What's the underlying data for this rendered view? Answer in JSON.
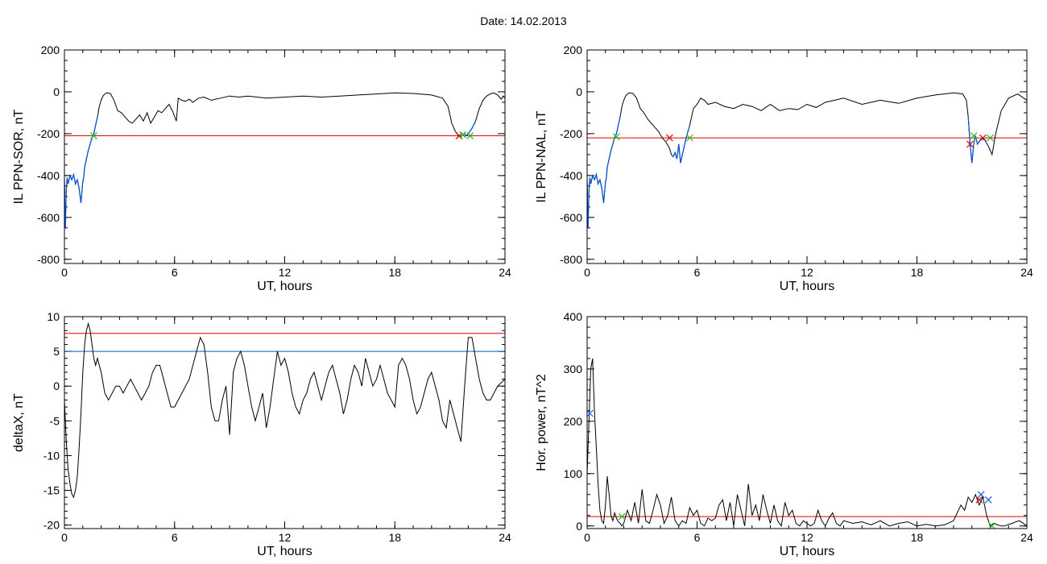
{
  "figure": {
    "title": "Date:  14.02.2013"
  },
  "colors": {
    "axis": "#000000",
    "trace": "#000000",
    "highlight": "#0050d0",
    "threshold_red": "#e00000",
    "threshold_blue": "#0060c0",
    "marker_green": "#20c020",
    "marker_red": "#d00000",
    "marker_blue": "#1060e0"
  },
  "chart_data": [
    {
      "type": "line",
      "id": "il-sor",
      "xlabel": "UT, hours",
      "ylabel": "IL PPN-SOR, nT",
      "xlim": [
        0,
        24
      ],
      "ylim": [
        -820,
        200
      ],
      "xticks": [
        0,
        6,
        12,
        18,
        24
      ],
      "yticks": [
        200,
        0,
        -200,
        -400,
        -600,
        -800
      ],
      "x_minor_step": 1,
      "y_minor_step": 50,
      "thresholds": [
        {
          "y": -210,
          "color": "red"
        }
      ],
      "series": [
        {
          "x": [
            0,
            0.05,
            0.1,
            0.15,
            0.2,
            0.3,
            0.4,
            0.5,
            0.6,
            0.7,
            0.8,
            0.9,
            1.0,
            1.05,
            1.1,
            1.2,
            1.3,
            1.4,
            1.5,
            1.6,
            1.7,
            1.8,
            1.9,
            2.0,
            2.1,
            2.2,
            2.3,
            2.5,
            2.7,
            2.9,
            3.1,
            3.3,
            3.5,
            3.7,
            3.9,
            4.1,
            4.3,
            4.5,
            4.7,
            4.9,
            5.1,
            5.3,
            5.5,
            5.7,
            5.9,
            6.1,
            6.2,
            6.4,
            6.6,
            6.8,
            7.0,
            7.3,
            7.6,
            8.0,
            8.5,
            9.0,
            9.5,
            10.0,
            11.0,
            12.0,
            13.0,
            14.0,
            15.0,
            16.0,
            17.0,
            18.0,
            19.0,
            20.0,
            20.6,
            20.9,
            21.1,
            21.3,
            21.5,
            21.6,
            21.7,
            21.8,
            21.9,
            22.0,
            22.2,
            22.4,
            22.6,
            22.8,
            23.0,
            23.2,
            23.4,
            23.6,
            23.8,
            23.9,
            24.0
          ],
          "y": [
            -420,
            -650,
            -470,
            -410,
            -440,
            -400,
            -420,
            -395,
            -440,
            -420,
            -460,
            -530,
            -430,
            -410,
            -360,
            -320,
            -280,
            -250,
            -220,
            -200,
            -160,
            -120,
            -70,
            -40,
            -20,
            -10,
            -5,
            -8,
            -40,
            -90,
            -100,
            -120,
            -140,
            -150,
            -130,
            -110,
            -140,
            -100,
            -150,
            -120,
            -90,
            -100,
            -80,
            -60,
            -95,
            -140,
            -30,
            -40,
            -45,
            -35,
            -50,
            -30,
            -25,
            -40,
            -30,
            -20,
            -25,
            -20,
            -30,
            -25,
            -20,
            -25,
            -20,
            -15,
            -10,
            -5,
            -8,
            -15,
            -30,
            -70,
            -150,
            -190,
            -210,
            -215,
            -205,
            -200,
            -210,
            -200,
            -175,
            -140,
            -80,
            -40,
            -20,
            -10,
            -5,
            -15,
            -35,
            -20,
            -30
          ],
          "highlight_x": [
            [
              0,
              1.8
            ],
            [
              21.3,
              22.4
            ]
          ],
          "markers": [
            {
              "x": 1.6,
              "y": -210,
              "color": "green"
            },
            {
              "x": 21.5,
              "y": -210,
              "color": "red"
            },
            {
              "x": 21.7,
              "y": -205,
              "color": "green"
            },
            {
              "x": 22.1,
              "y": -210,
              "color": "green"
            }
          ]
        }
      ]
    },
    {
      "type": "line",
      "id": "il-nal",
      "xlabel": "UT, hours",
      "ylabel": "IL PPN-NAL, nT",
      "xlim": [
        0,
        24
      ],
      "ylim": [
        -820,
        200
      ],
      "xticks": [
        0,
        6,
        12,
        18,
        24
      ],
      "yticks": [
        200,
        0,
        -200,
        -400,
        -600,
        -800
      ],
      "x_minor_step": 1,
      "y_minor_step": 50,
      "thresholds": [
        {
          "y": -220,
          "color": "red"
        }
      ],
      "series": [
        {
          "x": [
            0,
            0.05,
            0.1,
            0.15,
            0.2,
            0.3,
            0.4,
            0.5,
            0.6,
            0.7,
            0.8,
            0.9,
            1.0,
            1.05,
            1.1,
            1.2,
            1.3,
            1.4,
            1.5,
            1.6,
            1.7,
            1.8,
            1.9,
            2.0,
            2.1,
            2.2,
            2.3,
            2.5,
            2.7,
            2.9,
            3.1,
            3.3,
            3.5,
            3.7,
            3.9,
            4.1,
            4.3,
            4.5,
            4.6,
            4.7,
            4.8,
            4.9,
            5.0,
            5.1,
            5.2,
            5.3,
            5.4,
            5.6,
            5.8,
            6.0,
            6.2,
            6.4,
            6.6,
            7.0,
            7.5,
            8.0,
            8.5,
            9.0,
            9.5,
            10.0,
            10.5,
            11.0,
            11.5,
            12.0,
            12.5,
            13.0,
            14.0,
            15.0,
            16.0,
            17.0,
            18.0,
            19.0,
            20.0,
            20.5,
            20.7,
            20.8,
            20.9,
            21.0,
            21.1,
            21.2,
            21.3,
            21.5,
            21.7,
            21.9,
            22.1,
            22.3,
            22.6,
            23.0,
            23.5,
            24.0
          ],
          "y": [
            -420,
            -650,
            -470,
            -410,
            -440,
            -400,
            -420,
            -395,
            -440,
            -420,
            -460,
            -530,
            -430,
            -410,
            -360,
            -320,
            -280,
            -250,
            -220,
            -200,
            -160,
            -120,
            -70,
            -40,
            -20,
            -10,
            -5,
            -8,
            -30,
            -80,
            -100,
            -130,
            -150,
            -170,
            -190,
            -220,
            -240,
            -270,
            -300,
            -310,
            -290,
            -320,
            -250,
            -340,
            -300,
            -260,
            -220,
            -160,
            -80,
            -60,
            -30,
            -40,
            -60,
            -50,
            -70,
            -80,
            -60,
            -70,
            -90,
            -60,
            -90,
            -80,
            -85,
            -60,
            -75,
            -50,
            -30,
            -60,
            -40,
            -55,
            -30,
            -15,
            -5,
            -10,
            -40,
            -120,
            -250,
            -340,
            -250,
            -210,
            -250,
            -225,
            -230,
            -260,
            -300,
            -200,
            -90,
            -30,
            -10,
            -40
          ],
          "highlight_x": [
            [
              0,
              1.8
            ],
            [
              4.6,
              5.6
            ],
            [
              20.8,
              22.0
            ]
          ],
          "markers": [
            {
              "x": 1.6,
              "y": -215,
              "color": "green"
            },
            {
              "x": 4.5,
              "y": -220,
              "color": "red"
            },
            {
              "x": 5.6,
              "y": -220,
              "color": "green"
            },
            {
              "x": 20.9,
              "y": -250,
              "color": "red"
            },
            {
              "x": 21.1,
              "y": -210,
              "color": "green"
            },
            {
              "x": 21.6,
              "y": -220,
              "color": "red"
            },
            {
              "x": 22.0,
              "y": -220,
              "color": "green"
            }
          ]
        }
      ]
    },
    {
      "type": "line",
      "id": "deltax",
      "xlabel": "UT, hours",
      "ylabel": "deltaX, nT",
      "xlim": [
        0,
        24
      ],
      "ylim": [
        -20.5,
        10
      ],
      "xticks": [
        0,
        6,
        12,
        18,
        24
      ],
      "yticks": [
        10,
        5,
        0,
        -5,
        -10,
        -15,
        -20
      ],
      "x_minor_step": 1,
      "y_minor_step": 1,
      "thresholds": [
        {
          "y": 7.6,
          "color": "red"
        },
        {
          "y": 5,
          "color": "blue"
        }
      ],
      "series": [
        {
          "x": [
            0,
            0.1,
            0.2,
            0.3,
            0.4,
            0.5,
            0.6,
            0.7,
            0.8,
            0.9,
            1.0,
            1.1,
            1.2,
            1.3,
            1.4,
            1.5,
            1.6,
            1.7,
            1.8,
            2.0,
            2.2,
            2.4,
            2.6,
            2.8,
            3.0,
            3.2,
            3.4,
            3.6,
            3.8,
            4.0,
            4.2,
            4.4,
            4.6,
            4.8,
            5.0,
            5.2,
            5.4,
            5.6,
            5.8,
            6.0,
            6.2,
            6.4,
            6.6,
            6.8,
            7.0,
            7.2,
            7.4,
            7.6,
            7.8,
            8.0,
            8.2,
            8.4,
            8.6,
            8.8,
            9.0,
            9.2,
            9.4,
            9.6,
            9.8,
            10.0,
            10.2,
            10.4,
            10.6,
            10.8,
            11.0,
            11.2,
            11.4,
            11.6,
            11.8,
            12.0,
            12.2,
            12.4,
            12.6,
            12.8,
            13.0,
            13.2,
            13.4,
            13.6,
            13.8,
            14.0,
            14.2,
            14.4,
            14.6,
            14.8,
            15.0,
            15.2,
            15.4,
            15.6,
            15.8,
            16.0,
            16.2,
            16.4,
            16.6,
            16.8,
            17.0,
            17.2,
            17.4,
            17.6,
            17.8,
            18.0,
            18.2,
            18.4,
            18.6,
            18.8,
            19.0,
            19.2,
            19.4,
            19.6,
            19.8,
            20.0,
            20.2,
            20.4,
            20.6,
            20.8,
            21.0,
            21.2,
            21.4,
            21.6,
            21.8,
            22.0,
            22.2,
            22.4,
            22.6,
            22.8,
            23.0,
            23.2,
            23.4,
            23.6,
            23.8,
            24.0
          ],
          "y": [
            -2,
            -8,
            -12,
            -14,
            -15.5,
            -16,
            -15,
            -13,
            -9,
            -4,
            2,
            6,
            8,
            9,
            8,
            6,
            4,
            3,
            4,
            2,
            -1,
            -2,
            -1,
            0,
            0,
            -1,
            0,
            1,
            0,
            -1,
            -2,
            -1,
            0,
            2,
            3,
            3,
            1,
            -1,
            -3,
            -3,
            -2,
            -1,
            0,
            1,
            3,
            5,
            7,
            6,
            2,
            -3,
            -5,
            -5,
            -2,
            0,
            -7,
            2,
            4,
            5,
            3,
            0,
            -3,
            -5,
            -3,
            -1,
            -6,
            -3,
            1,
            5,
            3,
            4,
            2,
            -1,
            -3,
            -4,
            -2,
            -1,
            1,
            2,
            0,
            -2,
            0,
            2,
            3,
            1,
            -1,
            -4,
            -2,
            1,
            3,
            2,
            0,
            4,
            2,
            0,
            1,
            3,
            1,
            -1,
            -2,
            -3,
            3,
            4,
            3,
            1,
            -2,
            -4,
            -3,
            -1,
            1,
            2,
            0,
            -2,
            -5,
            -6,
            -2,
            -4,
            -6,
            -8,
            0,
            7,
            7,
            4,
            1,
            -1,
            -2,
            -2,
            -1,
            0,
            0.5,
            1
          ],
          "highlight_x": [],
          "markers": []
        }
      ]
    },
    {
      "type": "line",
      "id": "hor-power",
      "xlabel": "UT, hours",
      "ylabel": "Hor. power, nT^2",
      "xlim": [
        0,
        24
      ],
      "ylim": [
        -5,
        400
      ],
      "xticks": [
        0,
        6,
        12,
        18,
        24
      ],
      "yticks": [
        400,
        300,
        200,
        100,
        0
      ],
      "x_minor_step": 1,
      "y_minor_step": 20,
      "thresholds": [
        {
          "y": 18,
          "color": "red"
        }
      ],
      "series": [
        {
          "x": [
            0,
            0.1,
            0.2,
            0.3,
            0.4,
            0.5,
            0.6,
            0.7,
            0.8,
            0.9,
            1.0,
            1.1,
            1.2,
            1.3,
            1.4,
            1.5,
            1.6,
            1.7,
            1.8,
            1.9,
            2.0,
            2.2,
            2.4,
            2.6,
            2.8,
            3.0,
            3.2,
            3.4,
            3.6,
            3.8,
            4.0,
            4.2,
            4.4,
            4.6,
            4.8,
            5.0,
            5.2,
            5.4,
            5.6,
            5.8,
            6.0,
            6.2,
            6.4,
            6.6,
            6.8,
            7.0,
            7.2,
            7.4,
            7.6,
            7.8,
            8.0,
            8.2,
            8.4,
            8.6,
            8.8,
            9.0,
            9.2,
            9.4,
            9.6,
            9.8,
            10.0,
            10.2,
            10.4,
            10.6,
            10.8,
            11.0,
            11.2,
            11.4,
            11.6,
            11.8,
            12.0,
            12.2,
            12.4,
            12.6,
            12.8,
            13.0,
            13.2,
            13.4,
            13.6,
            13.8,
            14.0,
            14.5,
            15.0,
            15.5,
            16.0,
            16.5,
            17.0,
            17.5,
            18.0,
            18.5,
            19.0,
            19.5,
            20.0,
            20.2,
            20.4,
            20.6,
            20.8,
            21.0,
            21.2,
            21.4,
            21.6,
            21.8,
            22.0,
            22.2,
            22.4,
            22.6,
            22.8,
            23.0,
            23.2,
            23.4,
            23.6,
            23.8,
            24.0
          ],
          "y": [
            100,
            200,
            300,
            320,
            220,
            150,
            80,
            30,
            10,
            5,
            40,
            95,
            60,
            20,
            10,
            25,
            15,
            8,
            5,
            0,
            5,
            30,
            10,
            45,
            5,
            70,
            10,
            5,
            30,
            60,
            40,
            5,
            20,
            55,
            10,
            0,
            10,
            5,
            35,
            20,
            30,
            5,
            0,
            15,
            10,
            15,
            40,
            50,
            10,
            45,
            0,
            60,
            30,
            0,
            80,
            20,
            40,
            10,
            60,
            30,
            5,
            40,
            10,
            0,
            45,
            20,
            30,
            5,
            0,
            10,
            5,
            0,
            5,
            30,
            10,
            0,
            15,
            25,
            5,
            0,
            10,
            5,
            8,
            2,
            10,
            0,
            5,
            8,
            0,
            3,
            0,
            2,
            10,
            25,
            40,
            30,
            55,
            45,
            60,
            40,
            55,
            20,
            0,
            5,
            2,
            0,
            0,
            3,
            5,
            8,
            10,
            5,
            0
          ],
          "highlight_x": [],
          "markers": [
            {
              "x": 0.15,
              "y": 215,
              "color": "blue"
            },
            {
              "x": 1.9,
              "y": 18,
              "color": "green"
            },
            {
              "x": 21.4,
              "y": 50,
              "color": "red"
            },
            {
              "x": 21.5,
              "y": 60,
              "color": "blue"
            },
            {
              "x": 21.9,
              "y": 50,
              "color": "blue"
            },
            {
              "x": 22.1,
              "y": 0,
              "color": "green"
            }
          ]
        }
      ]
    }
  ]
}
